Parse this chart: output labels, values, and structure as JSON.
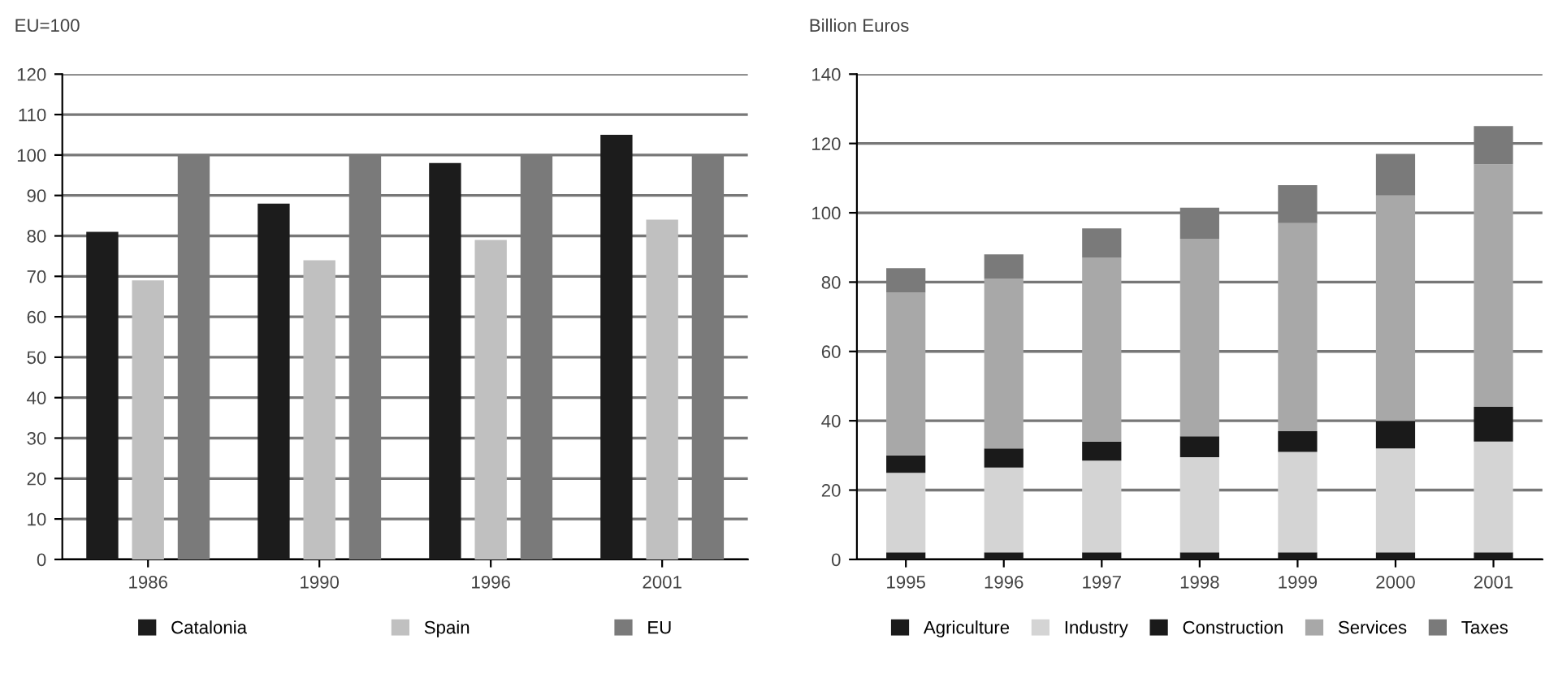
{
  "chart_data": [
    {
      "type": "bar",
      "ylabel": "EU=100",
      "categories": [
        "1986",
        "1990",
        "1996",
        "2001"
      ],
      "series": [
        {
          "name": "Catalonia",
          "color": "#1c1c1c",
          "values": [
            81,
            88,
            98,
            105
          ]
        },
        {
          "name": "Spain",
          "color": "#c0c0c0",
          "values": [
            69,
            74,
            79,
            84
          ]
        },
        {
          "name": "EU",
          "color": "#7a7a7a",
          "values": [
            100,
            100,
            100,
            100
          ]
        }
      ],
      "ylim": [
        0,
        120
      ],
      "yticks": [
        0,
        10,
        20,
        30,
        40,
        50,
        60,
        70,
        80,
        90,
        100,
        110,
        120
      ],
      "grid": "y",
      "legend": "bottom"
    },
    {
      "type": "bar",
      "stacked": true,
      "ylabel": "Billion Euros",
      "categories": [
        "1995",
        "1996",
        "1997",
        "1998",
        "1999",
        "2000",
        "2001"
      ],
      "series": [
        {
          "name": "Agriculture",
          "color": "#1a1a1a",
          "values": [
            2,
            2,
            2,
            2,
            2,
            2,
            2
          ]
        },
        {
          "name": "Industry",
          "color": "#d4d4d4",
          "values": [
            23,
            24.5,
            26.5,
            27.5,
            29,
            30,
            32
          ]
        },
        {
          "name": "Construction",
          "color": "#1a1a1a",
          "values": [
            5,
            5.5,
            5.5,
            6,
            6,
            8,
            10
          ]
        },
        {
          "name": "Services",
          "color": "#a8a8a8",
          "values": [
            47,
            49,
            53,
            57,
            60,
            65,
            70
          ]
        },
        {
          "name": "Taxes",
          "color": "#7a7a7a",
          "values": [
            7,
            7,
            8.5,
            9,
            11,
            12,
            11
          ]
        }
      ],
      "ylim": [
        0,
        140
      ],
      "yticks": [
        0,
        20,
        40,
        60,
        80,
        100,
        120,
        140
      ],
      "grid": "y",
      "legend": "bottom"
    }
  ]
}
